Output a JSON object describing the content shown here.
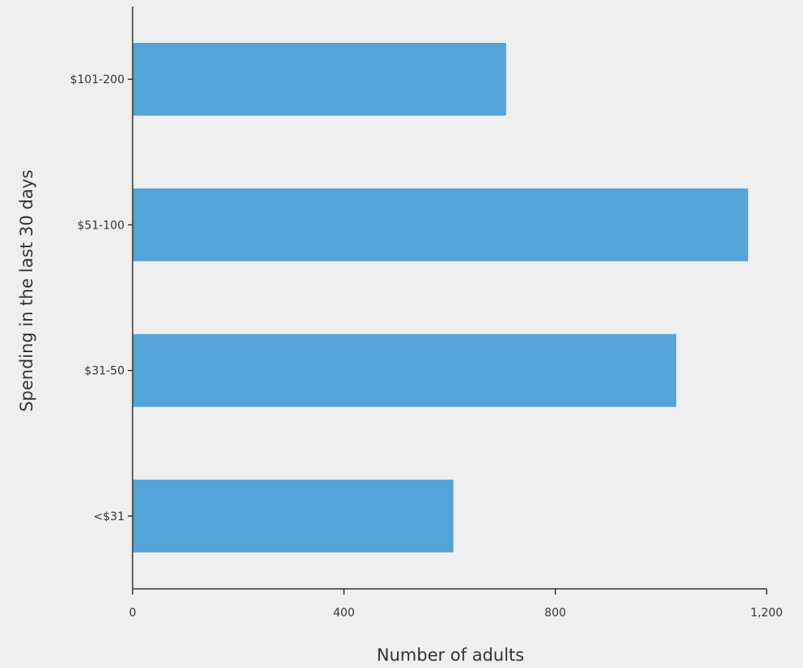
{
  "chart_data": {
    "type": "bar",
    "orientation": "horizontal",
    "categories": [
      "$101-200",
      "$51-100",
      "$31-50",
      "<$31"
    ],
    "values": [
      707,
      1165,
      1029,
      607
    ],
    "xlabel": "Number of adults",
    "ylabel": "Spending in the last 30 days",
    "xlim": [
      0,
      1200
    ],
    "xticks": [
      0,
      400,
      800,
      1200
    ],
    "xtick_labels": [
      "0",
      "400",
      "800",
      "1,200"
    ],
    "grid": false,
    "colors": {
      "bar": "#55a4d8",
      "axis": "#333333",
      "background": "#efefef"
    }
  }
}
